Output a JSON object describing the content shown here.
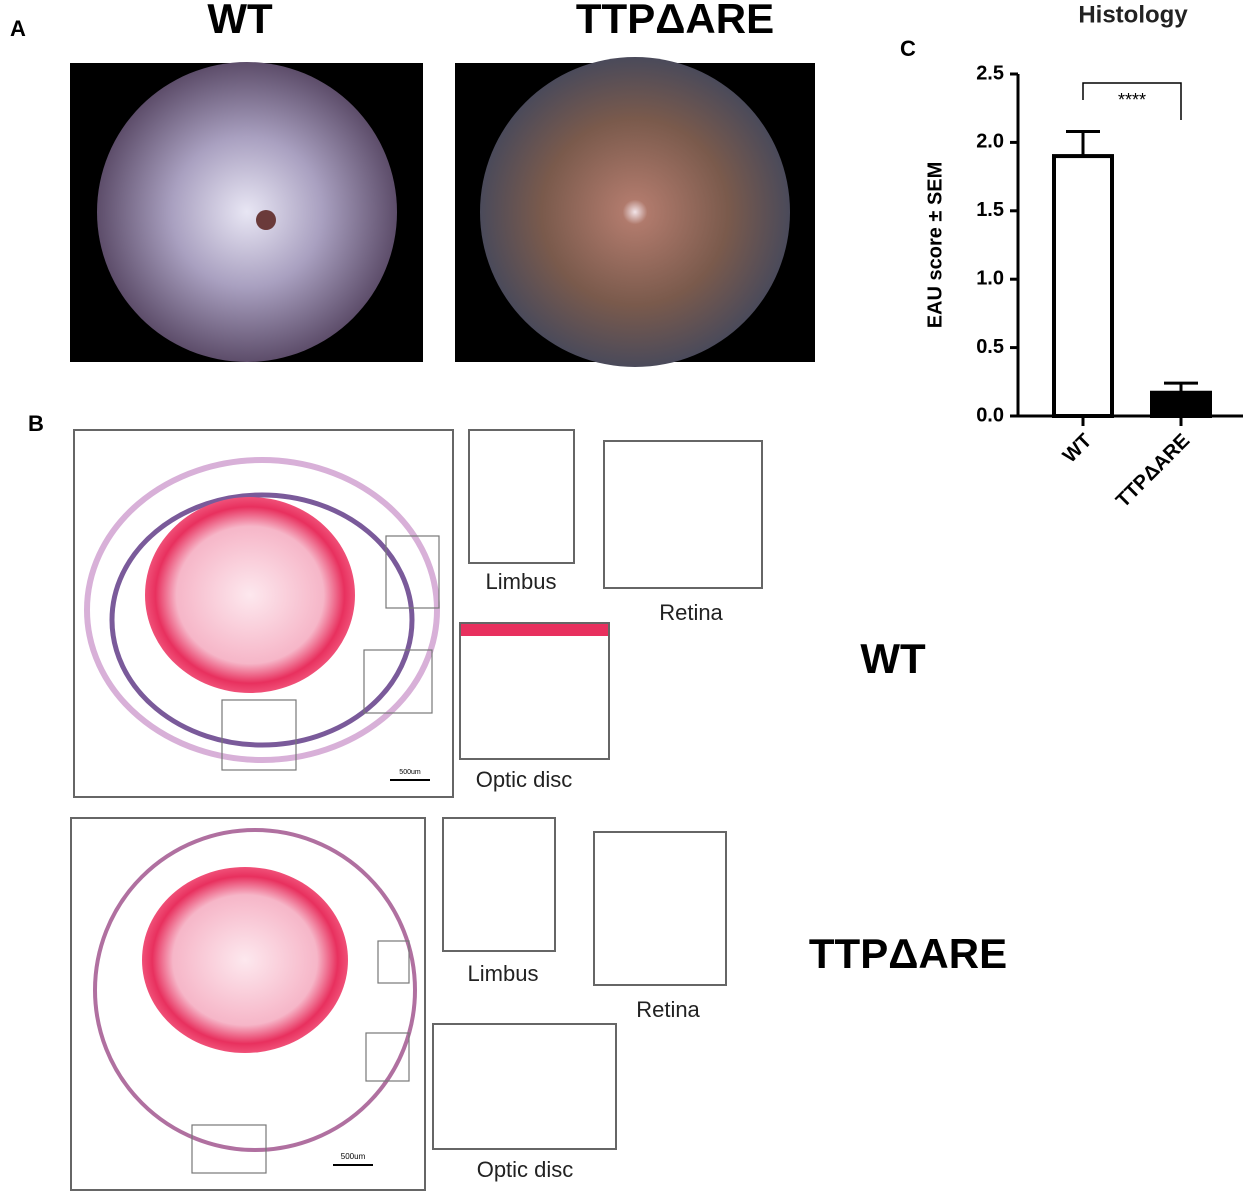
{
  "panel_labels": [
    "A",
    "B",
    "C"
  ],
  "fundus": {
    "titles": [
      "WT",
      "TTPΔARE"
    ]
  },
  "histology": {
    "rows": [
      {
        "group": "WT",
        "insets": [
          "Limbus",
          "Retina",
          "Optic disc"
        ],
        "scale_bar": "500um"
      },
      {
        "group": "TTPΔARE",
        "insets": [
          "Limbus",
          "Retina",
          "Optic disc"
        ],
        "scale_bar": "500um"
      }
    ]
  },
  "chart_data": {
    "type": "bar",
    "title": "Histology",
    "ylabel": "EAU score ± SEM",
    "categories": [
      "WT",
      "TTPΔARE"
    ],
    "values": [
      1.9,
      0.17
    ],
    "errors": [
      0.18,
      0.07
    ],
    "colors": [
      "#ffffff",
      "#000000"
    ],
    "ylim": [
      0,
      2.5
    ],
    "yticks": [
      {
        "value": 0,
        "label": "0.0"
      },
      0.5,
      {
        "value": 1,
        "label": "1.0"
      },
      1.5,
      {
        "value": 2,
        "label": "2.0"
      },
      2.5
    ],
    "annotation": "****"
  }
}
